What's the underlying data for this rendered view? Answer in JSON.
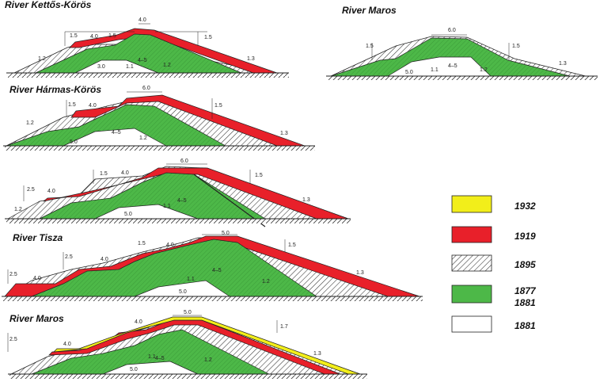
{
  "colors": {
    "1932": "#f2ee1a",
    "1919": "#e8202a",
    "1877_1881": "#4db848",
    "1881": "#ffffff",
    "outline": "#222222"
  },
  "legend": [
    {
      "id": "1932",
      "label": "1932",
      "fill": "yellow"
    },
    {
      "id": "1919",
      "label": "1919",
      "fill": "red"
    },
    {
      "id": "1895",
      "label": "1895",
      "fill": "hatch"
    },
    {
      "id": "1877_1881",
      "label": "1877",
      "label2": "1881",
      "fill": "green"
    },
    {
      "id": "1881",
      "label": "1881",
      "fill": "white"
    }
  ],
  "sections": [
    {
      "id": "kettos",
      "title": "River Kettős-Körös",
      "dims": [
        "4.0",
        "4.0",
        "1.5",
        "1.5",
        "1.5",
        "3.0",
        "4–5",
        "1.2",
        "1.2",
        "1.3",
        "1.1"
      ]
    },
    {
      "id": "maros1",
      "title": "River Maros",
      "dims": [
        "6.0",
        "1.5",
        "1.5",
        "5.0",
        "4–5",
        "1.2",
        "1.3",
        "1.1"
      ]
    },
    {
      "id": "harmas",
      "title": "River Hármas-Körös",
      "dims": [
        "6.0",
        "4.0",
        "1.5",
        "1.5",
        "5.0",
        "4–5",
        "1.2",
        "1.2",
        "1.3"
      ]
    },
    {
      "id": "untitled",
      "title": "",
      "dims": [
        "6.0",
        "4.0",
        "4.0",
        "1.5",
        "2.5",
        "1.5",
        "5.0",
        "4–5",
        "1.2",
        "1.3",
        "1.1"
      ]
    },
    {
      "id": "tisza",
      "title": "River Tisza",
      "dims": [
        "5.0",
        "4.0",
        "4.0",
        "4.0",
        "2.5",
        "2.5",
        "1.5",
        "1.5",
        "5.0",
        "4–5",
        "1.2",
        "1.3",
        "1.1"
      ]
    },
    {
      "id": "maros2",
      "title": "River Maros",
      "dims": [
        "5.0",
        "4.0",
        "4.0",
        "2.5",
        "1.7",
        "5.0",
        "4–5",
        "1.2",
        "1.3",
        "1.1"
      ]
    }
  ]
}
